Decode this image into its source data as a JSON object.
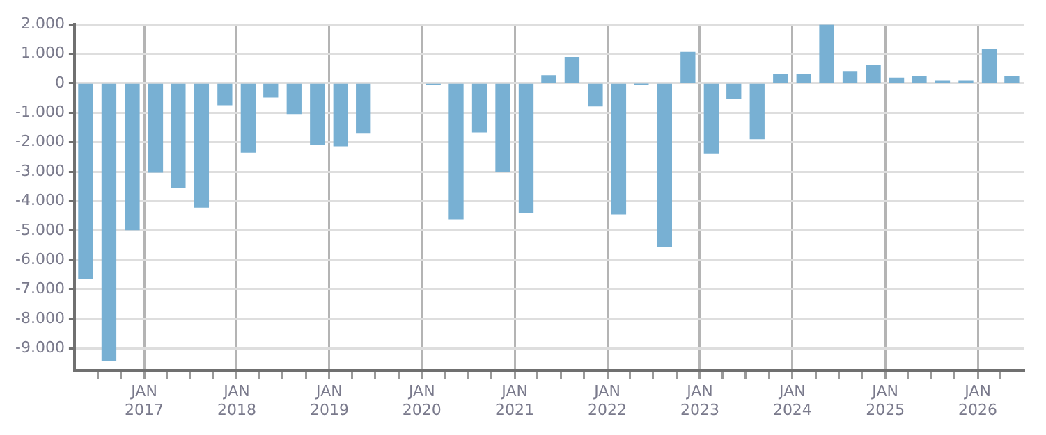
{
  "chart_data": {
    "type": "bar",
    "x": [
      "2016-05-15",
      "2016-08-15",
      "2016-11-15",
      "2017-02-15",
      "2017-05-15",
      "2017-08-15",
      "2017-11-15",
      "2018-02-15",
      "2018-05-15",
      "2018-08-15",
      "2018-11-15",
      "2019-02-15",
      "2019-05-15",
      "2019-08-15",
      "2019-11-15",
      "2020-02-15",
      "2020-05-15",
      "2020-08-15",
      "2020-11-15",
      "2021-02-15",
      "2021-05-15",
      "2021-08-15",
      "2021-11-15",
      "2022-02-15",
      "2022-05-15",
      "2022-08-15",
      "2022-11-15",
      "2023-02-15",
      "2023-05-15",
      "2023-08-15",
      "2023-11-15",
      "2024-02-15",
      "2024-05-15",
      "2024-08-15",
      "2024-11-15",
      "2025-02-15",
      "2025-05-15",
      "2025-08-15",
      "2025-11-15",
      "2026-02-15",
      "2026-05-15"
    ],
    "values": [
      -6630,
      -9410,
      -4970,
      -3020,
      -3540,
      -4200,
      -730,
      -2340,
      -470,
      -1030,
      -2080,
      -2120,
      -1690,
      null,
      null,
      -40,
      -4600,
      -1650,
      -3000,
      -4390,
      260,
      880,
      -770,
      -4430,
      -30,
      -5540,
      1050,
      -2360,
      -520,
      -1880,
      300,
      300,
      1980,
      400,
      620,
      180,
      220,
      90,
      90,
      1140,
      220
    ],
    "color": "#78b0d3",
    "xlim": [
      "2016-04-01",
      "2026-07-01"
    ],
    "xticks": [
      {
        "value": "2016-07-01",
        "label": null
      },
      {
        "value": "2016-10-01",
        "label": null
      },
      {
        "value": "2017-01-01",
        "label": "JAN 2017"
      },
      {
        "value": "2017-04-01",
        "label": null
      },
      {
        "value": "2017-07-01",
        "label": null
      },
      {
        "value": "2017-10-01",
        "label": null
      },
      {
        "value": "2018-01-01",
        "label": "JAN 2018"
      },
      {
        "value": "2018-04-01",
        "label": null
      },
      {
        "value": "2018-07-01",
        "label": null
      },
      {
        "value": "2018-10-01",
        "label": null
      },
      {
        "value": "2019-01-01",
        "label": "JAN 2019"
      },
      {
        "value": "2019-04-01",
        "label": null
      },
      {
        "value": "2019-07-01",
        "label": null
      },
      {
        "value": "2019-10-01",
        "label": null
      },
      {
        "value": "2020-01-01",
        "label": "JAN 2020"
      },
      {
        "value": "2020-04-01",
        "label": null
      },
      {
        "value": "2020-07-01",
        "label": null
      },
      {
        "value": "2020-10-01",
        "label": null
      },
      {
        "value": "2021-01-01",
        "label": "JAN 2021"
      },
      {
        "value": "2021-04-01",
        "label": null
      },
      {
        "value": "2021-07-01",
        "label": null
      },
      {
        "value": "2021-10-01",
        "label": null
      },
      {
        "value": "2022-01-01",
        "label": "JAN 2022"
      },
      {
        "value": "2022-04-01",
        "label": null
      },
      {
        "value": "2022-07-01",
        "label": null
      },
      {
        "value": "2022-10-01",
        "label": null
      },
      {
        "value": "2023-01-01",
        "label": "JAN 2023"
      },
      {
        "value": "2023-04-01",
        "label": null
      },
      {
        "value": "2023-07-01",
        "label": null
      },
      {
        "value": "2023-10-01",
        "label": null
      },
      {
        "value": "2024-01-01",
        "label": "JAN 2024"
      },
      {
        "value": "2024-04-01",
        "label": null
      },
      {
        "value": "2024-07-01",
        "label": null
      },
      {
        "value": "2024-10-01",
        "label": null
      },
      {
        "value": "2025-01-01",
        "label": "JAN 2025"
      },
      {
        "value": "2025-04-01",
        "label": null
      },
      {
        "value": "2025-07-01",
        "label": null
      },
      {
        "value": "2025-10-01",
        "label": null
      },
      {
        "value": "2026-01-01",
        "label": "JAN 2026"
      },
      {
        "value": "2026-04-01",
        "label": null
      }
    ],
    "ylim": [
      -9750,
      2000
    ],
    "yticks": [
      {
        "value": -9000,
        "label": "-9.000"
      },
      {
        "value": -8000,
        "label": "-8.000"
      },
      {
        "value": -7000,
        "label": "-7.000"
      },
      {
        "value": -6000,
        "label": "-6.000"
      },
      {
        "value": -5000,
        "label": "-5.000"
      },
      {
        "value": -4000,
        "label": "-4.000"
      },
      {
        "value": -3000,
        "label": "-3.000"
      },
      {
        "value": -2000,
        "label": "-2.000"
      },
      {
        "value": -1000,
        "label": "-1.000"
      },
      0,
      {
        "value": 1000,
        "label": "1.000"
      },
      {
        "value": 2000,
        "label": "2.000"
      }
    ],
    "grid": true,
    "legend": false
  }
}
